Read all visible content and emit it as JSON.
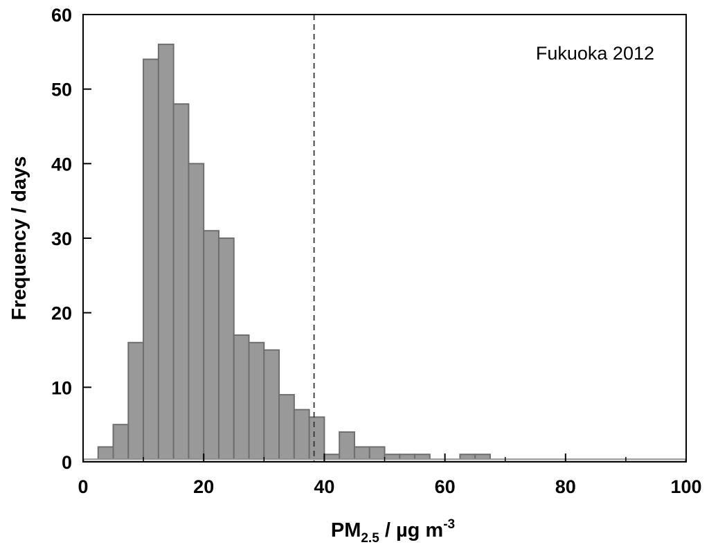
{
  "chart_data": {
    "type": "bar",
    "bin_width": 2.5,
    "bins": [
      {
        "x0": 2.5,
        "x1": 5.0,
        "count": 2
      },
      {
        "x0": 5.0,
        "x1": 7.5,
        "count": 5
      },
      {
        "x0": 7.5,
        "x1": 10.0,
        "count": 16
      },
      {
        "x0": 10.0,
        "x1": 12.5,
        "count": 54
      },
      {
        "x0": 12.5,
        "x1": 15.0,
        "count": 56
      },
      {
        "x0": 15.0,
        "x1": 17.5,
        "count": 48
      },
      {
        "x0": 17.5,
        "x1": 20.0,
        "count": 40
      },
      {
        "x0": 20.0,
        "x1": 22.5,
        "count": 31
      },
      {
        "x0": 22.5,
        "x1": 25.0,
        "count": 30
      },
      {
        "x0": 25.0,
        "x1": 27.5,
        "count": 17
      },
      {
        "x0": 27.5,
        "x1": 30.0,
        "count": 16
      },
      {
        "x0": 30.0,
        "x1": 32.5,
        "count": 15
      },
      {
        "x0": 32.5,
        "x1": 35.0,
        "count": 9
      },
      {
        "x0": 35.0,
        "x1": 37.5,
        "count": 7
      },
      {
        "x0": 37.5,
        "x1": 40.0,
        "count": 6
      },
      {
        "x0": 40.0,
        "x1": 42.5,
        "count": 1
      },
      {
        "x0": 42.5,
        "x1": 45.0,
        "count": 4
      },
      {
        "x0": 45.0,
        "x1": 47.5,
        "count": 2
      },
      {
        "x0": 47.5,
        "x1": 50.0,
        "count": 2
      },
      {
        "x0": 50.0,
        "x1": 52.5,
        "count": 1
      },
      {
        "x0": 52.5,
        "x1": 55.0,
        "count": 1
      },
      {
        "x0": 55.0,
        "x1": 57.5,
        "count": 1
      },
      {
        "x0": 62.5,
        "x1": 65.0,
        "count": 1
      },
      {
        "x0": 65.0,
        "x1": 67.5,
        "count": 1
      }
    ],
    "reference_line": {
      "x": 38.3,
      "style": "dashed"
    },
    "annotation": "Fukuoka 2012",
    "xlabel_main": "PM",
    "xlabel_sub": "2.5",
    "xlabel_units": " / µg m",
    "xlabel_sup": "-3",
    "ylabel": "Frequency / days",
    "xlim": [
      0,
      100
    ],
    "ylim": [
      0,
      60
    ],
    "xticks_major": [
      "0",
      "20",
      "40",
      "60",
      "80",
      "100"
    ],
    "xticks_minor": [
      10,
      30,
      50,
      70,
      90
    ],
    "yticks_major": [
      "0",
      "10",
      "20",
      "30",
      "40",
      "50",
      "60"
    ],
    "grid": false,
    "colors": {
      "bar_fill": "#999999",
      "bar_stroke": "#6e6e6e",
      "axis": "#000000",
      "baseline": "#8c8c8c"
    }
  }
}
